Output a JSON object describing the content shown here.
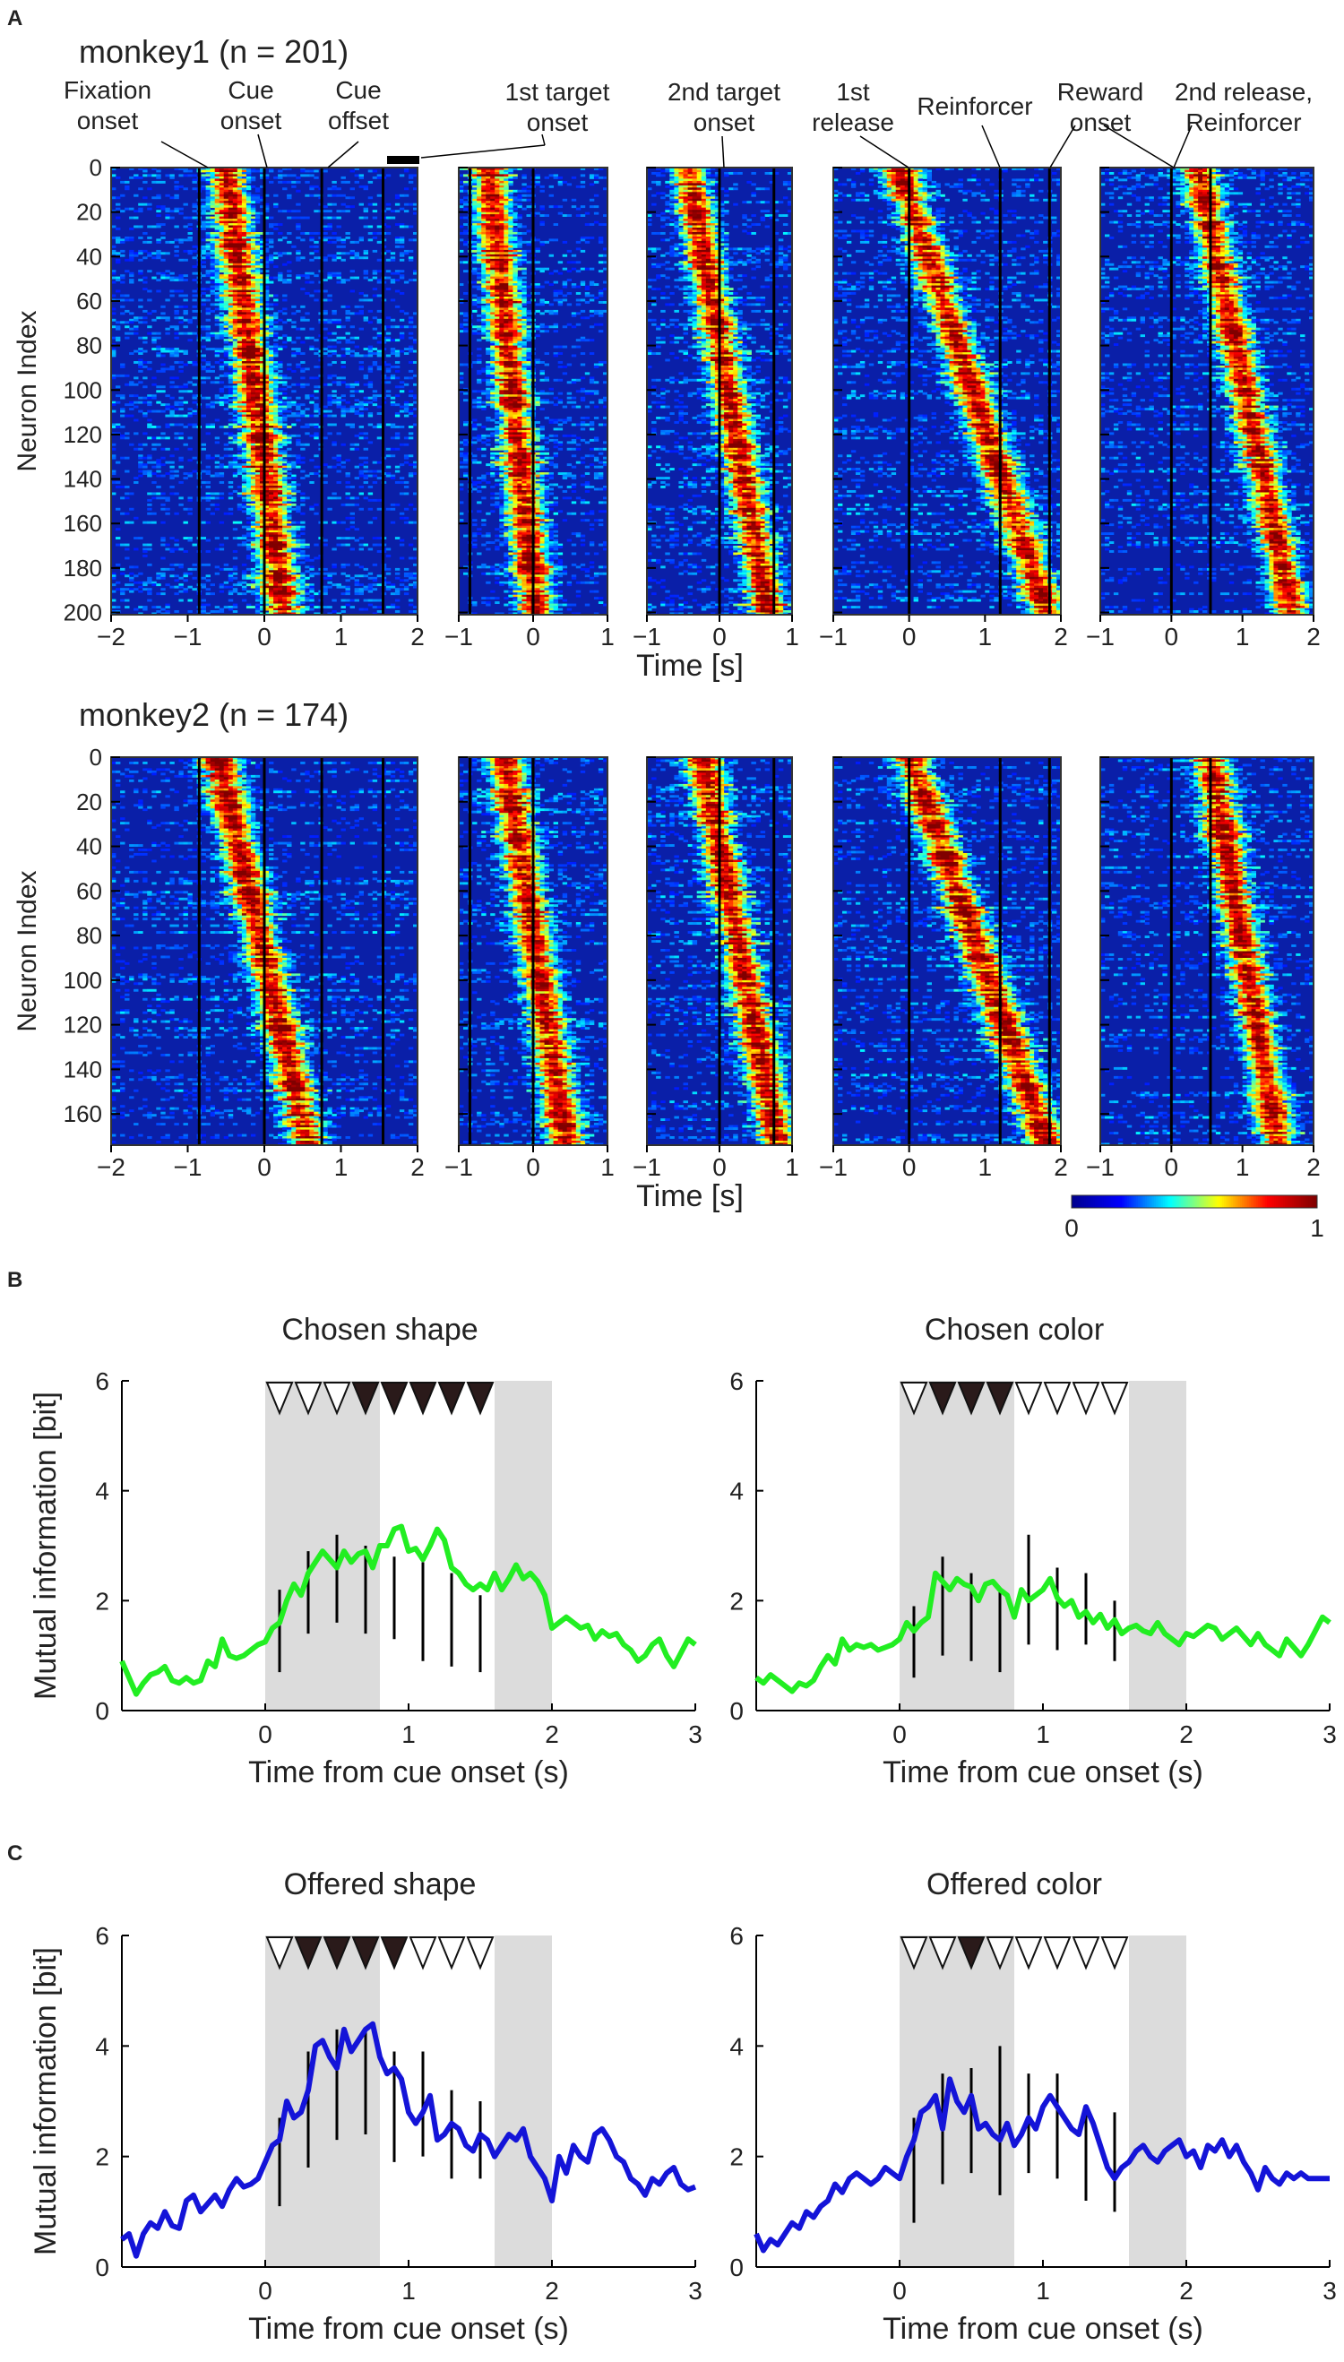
{
  "panel_labels": {
    "a": "A",
    "b": "B",
    "c": "C"
  },
  "colors": {
    "cb_stops": [
      "#00008f",
      "#0000ff",
      "#00ffff",
      "#ffff00",
      "#ff0000",
      "#800000"
    ],
    "hm_base": "#0a1fa8",
    "hm_alt": "#1e50d6",
    "shade": "#dcdcdc",
    "green": "#22ee22",
    "blue": "#1414d8"
  },
  "event_labels": {
    "fixation": [
      "Fixation",
      "onset"
    ],
    "cue_onset": [
      "Cue",
      "onset"
    ],
    "cue_offset": [
      "Cue",
      "offset"
    ],
    "target1": [
      "1st target",
      "onset"
    ],
    "target2": [
      "2nd target",
      "onset"
    ],
    "release1": [
      "1st",
      "release"
    ],
    "reinforcer": "Reinforcer",
    "reward": [
      "Reward",
      "onset"
    ],
    "release2": [
      "2nd release,",
      "Reinforcer"
    ]
  },
  "heatmaps": [
    {
      "title": "monkey1 (n = 201)",
      "ylabel": "Neuron Index",
      "xlabel": "Time [s]",
      "n": 201,
      "yticks": [
        0,
        20,
        40,
        60,
        80,
        100,
        120,
        140,
        160,
        180,
        200
      ],
      "panels": [
        {
          "xmin": -2,
          "xmax": 2,
          "xticks": [
            -2,
            -1,
            0,
            1,
            2
          ],
          "tick_labels": [
            "−2",
            "−1",
            "0",
            "1",
            "2"
          ],
          "vlines": [
            -0.85,
            0,
            0.75,
            1.55
          ],
          "ridge": [
            -0.5,
            2.0
          ],
          "order": [
            0,
            0.3
          ]
        },
        {
          "xmin": -1,
          "xmax": 1,
          "xticks": [
            -1,
            0,
            1
          ],
          "tick_labels": [
            "−1",
            "0",
            "1"
          ],
          "vlines": [
            -0.85,
            0
          ],
          "ridge": [
            -1.0,
            0.6
          ],
          "order": [
            0.25,
            0.65
          ]
        },
        {
          "xmin": -1,
          "xmax": 1,
          "xticks": [
            -1,
            0,
            1
          ],
          "tick_labels": [
            "−1",
            "0",
            "1"
          ],
          "vlines": [
            0,
            0.75
          ],
          "ridge": [
            -1.0,
            0.9
          ],
          "order": [
            0.3,
            0.88
          ]
        },
        {
          "xmin": -1,
          "xmax": 2,
          "xticks": [
            -1,
            0,
            1,
            2
          ],
          "tick_labels": [
            "−1",
            "0",
            "1",
            "2"
          ],
          "vlines": [
            0,
            1.2,
            1.85
          ],
          "ridge": [
            -1.0,
            1.9
          ],
          "order": [
            0.3,
            0.97
          ]
        },
        {
          "xmin": -1,
          "xmax": 2,
          "xticks": [
            -1,
            0,
            1,
            2
          ],
          "tick_labels": [
            "−1",
            "0",
            "1",
            "2"
          ],
          "vlines": [
            0,
            0.55
          ],
          "ridge": [
            -0.5,
            1.7
          ],
          "order": [
            0.4,
            1.0
          ]
        }
      ]
    },
    {
      "title": "monkey2 (n = 174)",
      "ylabel": "Neuron Index",
      "xlabel": "Time [s]",
      "n": 174,
      "yticks": [
        0,
        20,
        40,
        60,
        80,
        100,
        120,
        140,
        160
      ],
      "panels": [
        {
          "xmin": -2,
          "xmax": 2,
          "xticks": [
            -2,
            -1,
            0,
            1,
            2
          ],
          "tick_labels": [
            "−2",
            "−1",
            "0",
            "1",
            "2"
          ],
          "vlines": [
            -0.85,
            0,
            0.75,
            1.55
          ],
          "ridge": [
            -0.6,
            2.0
          ],
          "order": [
            0,
            0.45
          ]
        },
        {
          "xmin": -1,
          "xmax": 1,
          "xticks": [
            -1,
            0,
            1
          ],
          "tick_labels": [
            "−1",
            "0",
            "1"
          ],
          "vlines": [
            -0.85,
            0
          ],
          "ridge": [
            -1.0,
            0.8
          ],
          "order": [
            0.35,
            0.8
          ]
        },
        {
          "xmin": -1,
          "xmax": 1,
          "xticks": [
            -1,
            0,
            1
          ],
          "tick_labels": [
            "−1",
            "0",
            "1"
          ],
          "vlines": [
            0,
            0.75
          ],
          "ridge": [
            -1.0,
            0.9
          ],
          "order": [
            0.4,
            0.95
          ]
        },
        {
          "xmin": -1,
          "xmax": 2,
          "xticks": [
            -1,
            0,
            1,
            2
          ],
          "tick_labels": [
            "−1",
            "0",
            "1",
            "2"
          ],
          "vlines": [
            0,
            1.2,
            1.85
          ],
          "ridge": [
            -1.0,
            1.9
          ],
          "order": [
            0.35,
            0.97
          ]
        },
        {
          "xmin": -1,
          "xmax": 2,
          "xticks": [
            -1,
            0,
            1,
            2
          ],
          "tick_labels": [
            "−1",
            "0",
            "1",
            "2"
          ],
          "vlines": [
            0,
            0.55
          ],
          "ridge": [
            -0.4,
            1.5
          ],
          "order": [
            0.5,
            1.0
          ]
        }
      ]
    }
  ],
  "colorbar": {
    "min_label": "0",
    "max_label": "1"
  },
  "chart_data": [
    {
      "type": "line",
      "title": "Chosen shape",
      "xlabel": "Time from cue onset (s)",
      "ylabel": "Mutual information [bit]",
      "xlim": [
        -1,
        3
      ],
      "ylim": [
        0,
        6
      ],
      "xticks": [
        0,
        1,
        2,
        3
      ],
      "yticks": [
        0,
        2,
        4,
        6
      ],
      "shaded": [
        [
          0,
          0.8
        ],
        [
          1.6,
          2.0
        ]
      ],
      "triangles_filled": [
        false,
        false,
        false,
        true,
        true,
        true,
        true,
        true
      ],
      "triangle_start": 0.0,
      "triangle_step": 0.2,
      "x": [
        -1,
        -0.95,
        -0.9,
        -0.85,
        -0.8,
        -0.75,
        -0.7,
        -0.65,
        -0.6,
        -0.55,
        -0.5,
        -0.45,
        -0.4,
        -0.35,
        -0.3,
        -0.25,
        -0.2,
        -0.15,
        -0.1,
        -0.05,
        0,
        0.05,
        0.1,
        0.15,
        0.2,
        0.25,
        0.3,
        0.35,
        0.4,
        0.45,
        0.5,
        0.55,
        0.6,
        0.65,
        0.7,
        0.75,
        0.8,
        0.85,
        0.9,
        0.95,
        1,
        1.05,
        1.1,
        1.15,
        1.2,
        1.25,
        1.3,
        1.35,
        1.4,
        1.45,
        1.5,
        1.55,
        1.6,
        1.65,
        1.7,
        1.75,
        1.8,
        1.85,
        1.9,
        1.95,
        2,
        2.05,
        2.1,
        2.15,
        2.2,
        2.25,
        2.3,
        2.35,
        2.4,
        2.45,
        2.5,
        2.55,
        2.6,
        2.65,
        2.7,
        2.75,
        2.8,
        2.85,
        2.9,
        2.95,
        3
      ],
      "y": [
        0.9,
        0.6,
        0.3,
        0.5,
        0.65,
        0.7,
        0.8,
        0.55,
        0.5,
        0.6,
        0.5,
        0.55,
        0.9,
        0.8,
        1.3,
        1.0,
        0.95,
        1.0,
        1.1,
        1.2,
        1.25,
        1.5,
        1.6,
        2.0,
        2.3,
        2.1,
        2.5,
        2.7,
        2.9,
        2.75,
        2.6,
        2.9,
        2.7,
        2.85,
        2.9,
        2.6,
        3.0,
        3.0,
        3.3,
        3.35,
        2.9,
        2.95,
        2.75,
        3.0,
        3.3,
        3.1,
        2.6,
        2.5,
        2.3,
        2.2,
        2.3,
        2.2,
        2.5,
        2.2,
        2.4,
        2.65,
        2.4,
        2.5,
        2.35,
        2.1,
        1.5,
        1.6,
        1.7,
        1.6,
        1.5,
        1.55,
        1.3,
        1.45,
        1.35,
        1.4,
        1.2,
        1.1,
        0.9,
        1.0,
        1.2,
        1.3,
        1.0,
        0.8,
        1.05,
        1.3,
        1.2
      ],
      "error_x": [
        0.1,
        0.3,
        0.5,
        0.7,
        0.9,
        1.1,
        1.3,
        1.5
      ],
      "error_low": [
        0.7,
        1.4,
        1.6,
        1.4,
        1.3,
        0.9,
        0.8,
        0.7
      ],
      "error_high": [
        2.2,
        2.9,
        3.2,
        3.0,
        2.8,
        2.7,
        2.5,
        2.1
      ]
    },
    {
      "type": "line",
      "title": "Chosen color",
      "xlabel": "Time from cue onset (s)",
      "ylabel": "",
      "xlim": [
        -1,
        3
      ],
      "ylim": [
        0,
        6
      ],
      "xticks": [
        0,
        1,
        2,
        3
      ],
      "yticks": [
        0,
        2,
        4,
        6
      ],
      "shaded": [
        [
          0,
          0.8
        ],
        [
          1.6,
          2.0
        ]
      ],
      "triangles_filled": [
        false,
        true,
        true,
        true,
        false,
        false,
        false,
        false
      ],
      "triangle_start": 0.0,
      "triangle_step": 0.2,
      "x": [
        -1,
        -0.95,
        -0.9,
        -0.85,
        -0.8,
        -0.75,
        -0.7,
        -0.65,
        -0.6,
        -0.55,
        -0.5,
        -0.45,
        -0.4,
        -0.35,
        -0.3,
        -0.25,
        -0.2,
        -0.15,
        -0.1,
        -0.05,
        0,
        0.05,
        0.1,
        0.15,
        0.2,
        0.25,
        0.3,
        0.35,
        0.4,
        0.45,
        0.5,
        0.55,
        0.6,
        0.65,
        0.7,
        0.75,
        0.8,
        0.85,
        0.9,
        0.95,
        1,
        1.05,
        1.1,
        1.15,
        1.2,
        1.25,
        1.3,
        1.35,
        1.4,
        1.45,
        1.5,
        1.55,
        1.6,
        1.65,
        1.7,
        1.75,
        1.8,
        1.85,
        1.9,
        1.95,
        2,
        2.05,
        2.1,
        2.15,
        2.2,
        2.25,
        2.3,
        2.35,
        2.4,
        2.45,
        2.5,
        2.55,
        2.6,
        2.65,
        2.7,
        2.75,
        2.8,
        2.85,
        2.9,
        2.95,
        3
      ],
      "y": [
        0.6,
        0.5,
        0.65,
        0.55,
        0.45,
        0.35,
        0.5,
        0.45,
        0.55,
        0.8,
        1.0,
        0.85,
        1.3,
        1.1,
        1.2,
        1.15,
        1.2,
        1.1,
        1.15,
        1.2,
        1.3,
        1.6,
        1.45,
        1.6,
        1.7,
        2.5,
        2.35,
        2.2,
        2.4,
        2.3,
        2.25,
        2.0,
        2.3,
        2.35,
        2.2,
        2.1,
        1.7,
        2.2,
        2.0,
        2.1,
        2.2,
        2.4,
        2.05,
        1.9,
        2.0,
        1.7,
        1.8,
        1.6,
        1.75,
        1.5,
        1.65,
        1.4,
        1.5,
        1.55,
        1.45,
        1.4,
        1.6,
        1.4,
        1.3,
        1.2,
        1.4,
        1.35,
        1.45,
        1.55,
        1.5,
        1.3,
        1.4,
        1.5,
        1.35,
        1.2,
        1.4,
        1.2,
        1.1,
        1.0,
        1.3,
        1.15,
        1.0,
        1.2,
        1.45,
        1.7,
        1.6
      ],
      "error_x": [
        0.1,
        0.3,
        0.5,
        0.7,
        0.9,
        1.1,
        1.3,
        1.5
      ],
      "error_low": [
        0.6,
        1.0,
        0.9,
        0.7,
        1.2,
        1.1,
        1.2,
        0.9
      ],
      "error_high": [
        1.9,
        2.8,
        2.5,
        2.2,
        3.2,
        2.6,
        2.5,
        2.0
      ]
    },
    {
      "type": "line",
      "title": "Offered shape",
      "xlabel": "Time from cue onset (s)",
      "ylabel": "Mutual information [bit]",
      "xlim": [
        -1,
        3
      ],
      "ylim": [
        0,
        6
      ],
      "xticks": [
        0,
        1,
        2,
        3
      ],
      "yticks": [
        0,
        2,
        4,
        6
      ],
      "shaded": [
        [
          0,
          0.8
        ],
        [
          1.6,
          2.0
        ]
      ],
      "triangles_filled": [
        false,
        true,
        true,
        true,
        true,
        false,
        false,
        false
      ],
      "triangle_start": 0.0,
      "triangle_step": 0.2,
      "x": [
        -1,
        -0.95,
        -0.9,
        -0.85,
        -0.8,
        -0.75,
        -0.7,
        -0.65,
        -0.6,
        -0.55,
        -0.5,
        -0.45,
        -0.4,
        -0.35,
        -0.3,
        -0.25,
        -0.2,
        -0.15,
        -0.1,
        -0.05,
        0,
        0.05,
        0.1,
        0.15,
        0.2,
        0.25,
        0.3,
        0.35,
        0.4,
        0.45,
        0.5,
        0.55,
        0.6,
        0.65,
        0.7,
        0.75,
        0.8,
        0.85,
        0.9,
        0.95,
        1,
        1.05,
        1.1,
        1.15,
        1.2,
        1.25,
        1.3,
        1.35,
        1.4,
        1.45,
        1.5,
        1.55,
        1.6,
        1.65,
        1.7,
        1.75,
        1.8,
        1.85,
        1.9,
        1.95,
        2,
        2.05,
        2.1,
        2.15,
        2.2,
        2.25,
        2.3,
        2.35,
        2.4,
        2.45,
        2.5,
        2.55,
        2.6,
        2.65,
        2.7,
        2.75,
        2.8,
        2.85,
        2.9,
        2.95,
        3
      ],
      "y": [
        0.5,
        0.6,
        0.2,
        0.6,
        0.8,
        0.7,
        1.0,
        0.75,
        0.7,
        1.2,
        1.3,
        1.0,
        1.15,
        1.3,
        1.1,
        1.4,
        1.6,
        1.45,
        1.5,
        1.6,
        1.9,
        2.2,
        2.3,
        3.0,
        2.7,
        2.8,
        3.2,
        4.0,
        4.1,
        3.8,
        3.6,
        4.3,
        3.9,
        4.1,
        4.3,
        4.4,
        3.8,
        3.5,
        3.6,
        3.4,
        2.8,
        2.6,
        2.8,
        3.1,
        2.3,
        2.4,
        2.6,
        2.5,
        2.2,
        2.1,
        2.4,
        2.3,
        2.0,
        2.2,
        2.4,
        2.3,
        2.5,
        2.0,
        1.8,
        1.6,
        1.2,
        2.0,
        1.7,
        2.2,
        2.0,
        1.9,
        2.4,
        2.5,
        2.3,
        2.0,
        1.9,
        1.6,
        1.5,
        1.3,
        1.6,
        1.5,
        1.7,
        1.8,
        1.5,
        1.4,
        1.45
      ],
      "error_x": [
        0.1,
        0.3,
        0.5,
        0.7,
        0.9,
        1.1,
        1.3,
        1.5
      ],
      "error_low": [
        1.1,
        1.8,
        2.3,
        2.4,
        1.9,
        2.0,
        1.6,
        1.6
      ],
      "error_high": [
        2.7,
        3.9,
        4.3,
        4.3,
        3.9,
        3.9,
        3.2,
        3.0
      ]
    },
    {
      "type": "line",
      "title": "Offered color",
      "xlabel": "Time from cue onset (s)",
      "ylabel": "",
      "xlim": [
        -1,
        3
      ],
      "ylim": [
        0,
        6
      ],
      "xticks": [
        0,
        1,
        2,
        3
      ],
      "yticks": [
        0,
        2,
        4,
        6
      ],
      "shaded": [
        [
          0,
          0.8
        ],
        [
          1.6,
          2.0
        ]
      ],
      "triangles_filled": [
        false,
        false,
        true,
        false,
        false,
        false,
        false,
        false
      ],
      "triangle_start": 0.0,
      "triangle_step": 0.2,
      "x": [
        -1,
        -0.95,
        -0.9,
        -0.85,
        -0.8,
        -0.75,
        -0.7,
        -0.65,
        -0.6,
        -0.55,
        -0.5,
        -0.45,
        -0.4,
        -0.35,
        -0.3,
        -0.25,
        -0.2,
        -0.15,
        -0.1,
        -0.05,
        0,
        0.05,
        0.1,
        0.15,
        0.2,
        0.25,
        0.3,
        0.35,
        0.4,
        0.45,
        0.5,
        0.55,
        0.6,
        0.65,
        0.7,
        0.75,
        0.8,
        0.85,
        0.9,
        0.95,
        1,
        1.05,
        1.1,
        1.15,
        1.2,
        1.25,
        1.3,
        1.35,
        1.4,
        1.45,
        1.5,
        1.55,
        1.6,
        1.65,
        1.7,
        1.75,
        1.8,
        1.85,
        1.9,
        1.95,
        2,
        2.05,
        2.1,
        2.15,
        2.2,
        2.25,
        2.3,
        2.35,
        2.4,
        2.45,
        2.5,
        2.55,
        2.6,
        2.65,
        2.7,
        2.75,
        2.8,
        2.85,
        2.9,
        2.95,
        3
      ],
      "y": [
        0.6,
        0.3,
        0.5,
        0.4,
        0.6,
        0.8,
        0.7,
        1.0,
        0.9,
        1.1,
        1.2,
        1.5,
        1.35,
        1.6,
        1.7,
        1.6,
        1.5,
        1.6,
        1.8,
        1.7,
        1.6,
        2.0,
        2.3,
        2.8,
        2.9,
        3.1,
        2.5,
        3.4,
        3.0,
        2.8,
        3.1,
        2.5,
        2.6,
        2.4,
        2.3,
        2.6,
        2.2,
        2.4,
        2.7,
        2.5,
        2.9,
        3.1,
        2.9,
        2.7,
        2.5,
        2.4,
        2.9,
        2.6,
        2.2,
        1.8,
        1.6,
        1.8,
        1.9,
        2.1,
        2.2,
        2.0,
        1.9,
        2.1,
        2.2,
        2.3,
        2.0,
        2.1,
        1.8,
        2.2,
        2.1,
        2.3,
        2.0,
        2.2,
        1.9,
        1.7,
        1.4,
        1.8,
        1.6,
        1.5,
        1.7,
        1.6,
        1.7,
        1.6,
        1.6,
        1.6,
        1.6
      ],
      "error_x": [
        0.1,
        0.3,
        0.5,
        0.7,
        0.9,
        1.1,
        1.3,
        1.5
      ],
      "error_low": [
        0.8,
        1.5,
        1.7,
        1.3,
        1.7,
        1.6,
        1.2,
        1.0
      ],
      "error_high": [
        2.7,
        3.5,
        3.6,
        4.0,
        3.5,
        3.5,
        2.9,
        2.8
      ]
    }
  ]
}
